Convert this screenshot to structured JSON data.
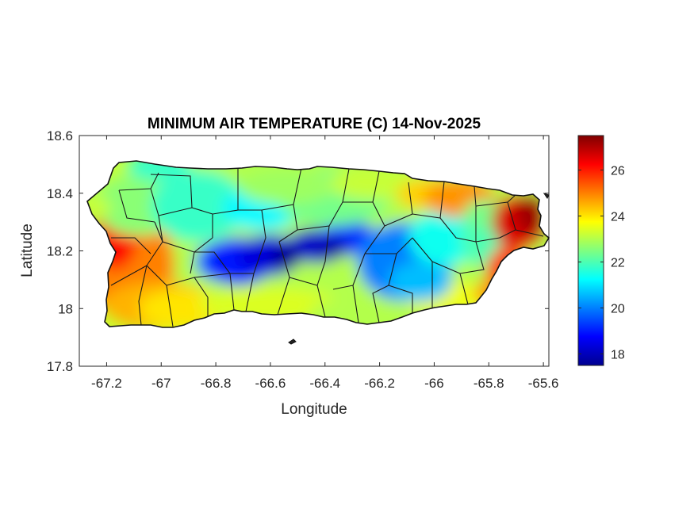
{
  "chart_data": {
    "type": "heatmap",
    "title": "MINIMUM AIR TEMPERATURE (C) 14-Nov-2025",
    "xlabel": "Longitude",
    "ylabel": "Latitude",
    "xlim": [
      -67.3,
      -65.58
    ],
    "ylim": [
      17.8,
      18.6
    ],
    "x_ticks": [
      -67.2,
      -67.0,
      -66.8,
      -66.6,
      -66.4,
      -66.2,
      -66.0,
      -65.8,
      -65.6
    ],
    "x_tick_labels": [
      "-67.2",
      "-67",
      "-66.8",
      "-66.6",
      "-66.4",
      "-66.2",
      "-66",
      "-65.8",
      "-65.6"
    ],
    "y_ticks": [
      17.8,
      18.0,
      18.2,
      18.4,
      18.6
    ],
    "y_tick_labels": [
      "17.8",
      "18",
      "18.2",
      "18.4",
      "18.6"
    ],
    "colorbar": {
      "colormap": "jet",
      "range": [
        17.5,
        27.5
      ],
      "ticks": [
        18,
        20,
        22,
        24,
        26
      ],
      "tick_labels": [
        "18",
        "20",
        "22",
        "24",
        "26"
      ]
    },
    "grid": false,
    "region": "Puerto Rico",
    "field_samples": [
      {
        "x": -67.18,
        "y": 18.22,
        "value": 25.5
      },
      {
        "x": -67.15,
        "y": 18.08,
        "value": 24.5
      },
      {
        "x": -67.1,
        "y": 18.4,
        "value": 22.8
      },
      {
        "x": -66.95,
        "y": 18.45,
        "value": 22.2
      },
      {
        "x": -66.95,
        "y": 18.3,
        "value": 21.8
      },
      {
        "x": -66.95,
        "y": 18.02,
        "value": 24.5
      },
      {
        "x": -66.85,
        "y": 18.2,
        "value": 19.6
      },
      {
        "x": -66.75,
        "y": 18.15,
        "value": 18.4
      },
      {
        "x": -66.6,
        "y": 18.17,
        "value": 18.0
      },
      {
        "x": -66.5,
        "y": 18.22,
        "value": 18.3
      },
      {
        "x": -66.4,
        "y": 18.22,
        "value": 18.8
      },
      {
        "x": -66.6,
        "y": 18.45,
        "value": 21.2
      },
      {
        "x": -66.4,
        "y": 18.45,
        "value": 22.0
      },
      {
        "x": -66.6,
        "y": 18.0,
        "value": 23.6
      },
      {
        "x": -66.3,
        "y": 18.0,
        "value": 23.2
      },
      {
        "x": -66.2,
        "y": 18.15,
        "value": 20.2
      },
      {
        "x": -66.1,
        "y": 18.3,
        "value": 21.2
      },
      {
        "x": -66.1,
        "y": 18.45,
        "value": 23.6
      },
      {
        "x": -66.05,
        "y": 18.0,
        "value": 23.0
      },
      {
        "x": -65.9,
        "y": 18.45,
        "value": 25.0
      },
      {
        "x": -65.85,
        "y": 18.15,
        "value": 22.2
      },
      {
        "x": -65.75,
        "y": 18.05,
        "value": 25.2
      },
      {
        "x": -65.68,
        "y": 18.3,
        "value": 26.8
      }
    ]
  }
}
